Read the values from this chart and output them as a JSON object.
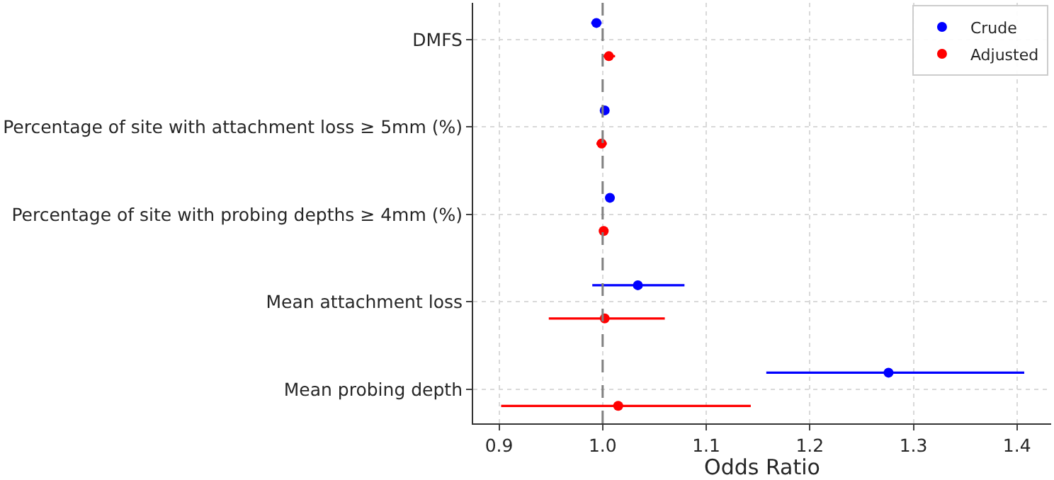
{
  "chart_data": {
    "type": "scatter",
    "categories": [
      "DMFS",
      "Percentage of site with attachment loss ≥ 5mm (%)",
      "Percentage of site with probing depths ≥ 4mm (%)",
      "Mean attachment loss",
      "Mean probing depth"
    ],
    "series": [
      {
        "name": "Crude",
        "color": "#0000ff",
        "values": [
          0.994,
          1.002,
          1.007,
          1.034,
          1.276
        ],
        "errors": [
          [
            0.989,
            0.999
          ],
          null,
          [
            1.004,
            1.01
          ],
          [
            0.99,
            1.079
          ],
          [
            1.158,
            1.407
          ]
        ]
      },
      {
        "name": "Adjusted",
        "color": "#ff0000",
        "values": [
          1.006,
          0.999,
          1.001,
          1.002,
          1.015
        ],
        "errors": [
          [
            1.0,
            1.012
          ],
          [
            0.994,
            1.004
          ],
          null,
          [
            0.948,
            1.06
          ],
          [
            0.902,
            1.143
          ]
        ]
      }
    ],
    "orientation": "horizontal",
    "xlabel": "Odds Ratio",
    "xlim": [
      0.875,
      1.433
    ],
    "xticks": [
      {
        "value": 0.9,
        "label": "0.9"
      },
      {
        "value": 1.0,
        "label": "1.0"
      },
      {
        "value": 1.1,
        "label": "1.1"
      },
      {
        "value": 1.2,
        "label": "1.2"
      },
      {
        "value": 1.3,
        "label": "1.3"
      },
      {
        "value": 1.4,
        "label": "1.4"
      }
    ],
    "ref_lines": [
      {
        "axis": "x",
        "value": 1.0,
        "color": "#808080",
        "line_style": "dashed"
      }
    ],
    "grid": true,
    "legend": "top right",
    "marker": "circle"
  }
}
